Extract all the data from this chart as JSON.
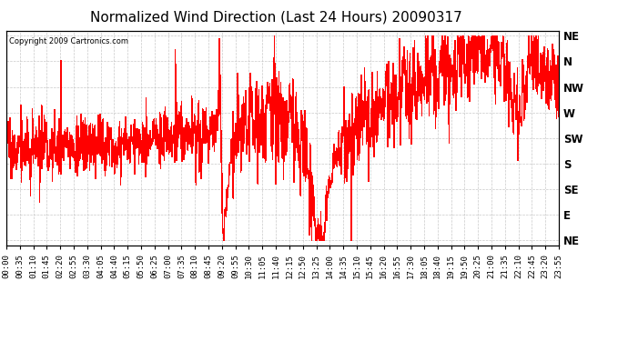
{
  "title": "Normalized Wind Direction (Last 24 Hours) 20090317",
  "copyright": "Copyright 2009 Cartronics.com",
  "line_color": "#FF0000",
  "background_color": "#FFFFFF",
  "plot_bg_color": "#FFFFFF",
  "grid_color": "#BBBBBB",
  "ytick_labels": [
    "NE",
    "E",
    "SE",
    "S",
    "SW",
    "W",
    "NW",
    "N",
    "NE"
  ],
  "ytick_values": [
    0,
    1,
    2,
    3,
    4,
    5,
    6,
    7,
    8
  ],
  "xtick_labels": [
    "00:00",
    "00:35",
    "01:10",
    "01:45",
    "02:20",
    "02:55",
    "03:30",
    "04:05",
    "04:40",
    "05:15",
    "05:50",
    "06:25",
    "07:00",
    "07:35",
    "08:10",
    "08:45",
    "09:20",
    "09:55",
    "10:30",
    "11:05",
    "11:40",
    "12:15",
    "12:50",
    "13:25",
    "14:00",
    "14:35",
    "15:10",
    "15:45",
    "16:20",
    "16:55",
    "17:30",
    "18:05",
    "18:40",
    "19:15",
    "19:50",
    "20:25",
    "21:00",
    "21:35",
    "22:10",
    "22:45",
    "23:20",
    "23:55"
  ],
  "num_points": 1440,
  "figsize": [
    6.9,
    3.75
  ],
  "dpi": 100,
  "title_fontsize": 11,
  "axis_fontsize": 6.5,
  "copyright_fontsize": 6
}
